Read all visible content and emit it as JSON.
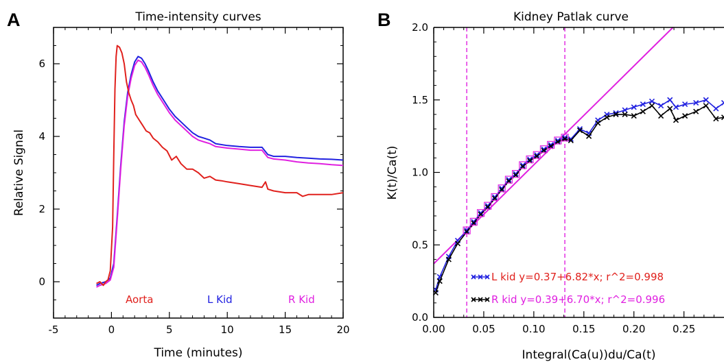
{
  "chart_data": [
    {
      "panel": "A",
      "type": "line",
      "title": "Time-intensity curves",
      "xlabel": "Time (minutes)",
      "ylabel": "Relative Signal",
      "xlim": [
        -5,
        20
      ],
      "ylim": [
        -1.0,
        7.0
      ],
      "xticks": [
        -5,
        0,
        5,
        10,
        15,
        20
      ],
      "yticks": [
        0,
        2,
        4,
        6
      ],
      "grid": false,
      "annotations": [
        {
          "text": "Aorta",
          "color": "#e0201c"
        },
        {
          "text": "L Kid",
          "color": "#2020e0"
        },
        {
          "text": "R Kid",
          "color": "#e020e0"
        }
      ],
      "series": [
        {
          "name": "Aorta",
          "color": "#e0201c",
          "x": [
            -1.3,
            -1.0,
            -0.7,
            -0.5,
            -0.3,
            -0.1,
            0.1,
            0.2,
            0.3,
            0.4,
            0.5,
            0.7,
            0.9,
            1.1,
            1.3,
            1.5,
            1.7,
            1.9,
            2.1,
            2.3,
            2.5,
            2.7,
            3.0,
            3.3,
            3.6,
            4.0,
            4.4,
            4.8,
            5.2,
            5.6,
            6.0,
            6.5,
            7.0,
            7.5,
            8.0,
            8.5,
            9.0,
            9.5,
            10.0,
            11.0,
            12.0,
            13.0,
            13.3,
            13.5,
            14.0,
            15.0,
            16.0,
            16.5,
            17.0,
            18.0,
            19.0,
            20.0
          ],
          "y": [
            -0.05,
            0.0,
            -0.1,
            0.0,
            0.05,
            0.3,
            1.5,
            3.5,
            5.3,
            6.2,
            6.5,
            6.45,
            6.3,
            6.0,
            5.5,
            5.2,
            5.0,
            4.85,
            4.6,
            4.5,
            4.4,
            4.3,
            4.15,
            4.1,
            3.95,
            3.85,
            3.7,
            3.6,
            3.35,
            3.45,
            3.25,
            3.1,
            3.1,
            3.0,
            2.85,
            2.9,
            2.8,
            2.78,
            2.75,
            2.7,
            2.65,
            2.6,
            2.75,
            2.55,
            2.5,
            2.45,
            2.45,
            2.35,
            2.4,
            2.4,
            2.4,
            2.45
          ]
        },
        {
          "name": "L Kid",
          "color": "#2020e0",
          "x": [
            -1.3,
            -1.0,
            -0.5,
            -0.1,
            0.2,
            0.5,
            0.8,
            1.1,
            1.4,
            1.7,
            2.0,
            2.3,
            2.6,
            2.9,
            3.2,
            3.6,
            4.0,
            4.5,
            5.0,
            5.5,
            6.0,
            6.5,
            7.0,
            7.5,
            8.0,
            8.5,
            9.0,
            10.0,
            11.0,
            12.0,
            13.0,
            13.5,
            14.0,
            15.0,
            16.0,
            17.0,
            18.0,
            19.0,
            20.0
          ],
          "y": [
            -0.1,
            -0.05,
            0.0,
            0.1,
            0.5,
            1.8,
            3.2,
            4.4,
            5.2,
            5.7,
            6.05,
            6.2,
            6.15,
            6.0,
            5.8,
            5.5,
            5.25,
            5.0,
            4.75,
            4.55,
            4.4,
            4.25,
            4.1,
            4.0,
            3.95,
            3.9,
            3.8,
            3.75,
            3.72,
            3.7,
            3.7,
            3.5,
            3.45,
            3.45,
            3.42,
            3.4,
            3.38,
            3.37,
            3.35
          ]
        },
        {
          "name": "R Kid",
          "color": "#e020e0",
          "x": [
            -1.3,
            -1.0,
            -0.5,
            -0.1,
            0.2,
            0.5,
            0.8,
            1.1,
            1.4,
            1.7,
            2.0,
            2.3,
            2.6,
            2.9,
            3.2,
            3.6,
            4.0,
            4.5,
            5.0,
            5.5,
            6.0,
            6.5,
            7.0,
            7.5,
            8.0,
            8.5,
            9.0,
            10.0,
            11.0,
            12.0,
            13.0,
            13.5,
            14.0,
            15.0,
            16.0,
            17.0,
            18.0,
            19.0,
            20.0
          ],
          "y": [
            -0.15,
            -0.1,
            -0.05,
            0.05,
            0.4,
            1.7,
            3.1,
            4.3,
            5.1,
            5.6,
            5.95,
            6.1,
            6.05,
            5.9,
            5.7,
            5.4,
            5.15,
            4.9,
            4.65,
            4.45,
            4.3,
            4.15,
            4.0,
            3.9,
            3.85,
            3.8,
            3.72,
            3.68,
            3.65,
            3.62,
            3.62,
            3.42,
            3.38,
            3.35,
            3.3,
            3.27,
            3.25,
            3.22,
            3.2
          ]
        }
      ]
    },
    {
      "panel": "B",
      "type": "line",
      "title": "Kidney Patlak curve",
      "xlabel": "Integral(Ca(u))du/Ca(t)",
      "ylabel": "K(t)/Ca(t)",
      "xlim": [
        0.0,
        0.29
      ],
      "ylim": [
        0.0,
        2.0
      ],
      "xticks": [
        "0.00",
        "0.05",
        "0.10",
        "0.15",
        "0.20",
        "0.25"
      ],
      "yticks": [
        "0.0",
        "0.5",
        "1.0",
        "1.5",
        "2.0"
      ],
      "grid": false,
      "vlines": [
        0.033,
        0.131
      ],
      "vline_color": "#e020e0",
      "fit_line": {
        "intercept": 0.37,
        "slope": 6.82,
        "color": "#e020e0"
      },
      "annotations": [
        {
          "text": "L kid y=0.37+6.82*x; r^2=0.998",
          "color": "#e0201c",
          "marker_color": "#2020e0"
        },
        {
          "text": "R kid y=0.39+6.70*x; r^2=0.996",
          "color": "#e020e0",
          "marker_color": "#000000"
        }
      ],
      "series": [
        {
          "name": "L kid",
          "color": "#2020e0",
          "x": [
            0.002,
            0.006,
            0.015,
            0.024,
            0.033,
            0.04,
            0.047,
            0.054,
            0.061,
            0.068,
            0.075,
            0.082,
            0.089,
            0.096,
            0.103,
            0.11,
            0.117,
            0.124,
            0.131,
            0.137,
            0.146,
            0.155,
            0.164,
            0.173,
            0.182,
            0.191,
            0.2,
            0.209,
            0.218,
            0.227,
            0.236,
            0.242,
            0.251,
            0.262,
            0.272,
            0.282,
            0.29
          ],
          "y": [
            0.19,
            0.28,
            0.42,
            0.53,
            0.6,
            0.66,
            0.72,
            0.77,
            0.83,
            0.89,
            0.95,
            0.99,
            1.05,
            1.09,
            1.12,
            1.16,
            1.19,
            1.22,
            1.24,
            1.23,
            1.3,
            1.27,
            1.36,
            1.4,
            1.41,
            1.43,
            1.45,
            1.47,
            1.49,
            1.46,
            1.5,
            1.45,
            1.47,
            1.48,
            1.5,
            1.44,
            1.48
          ]
        },
        {
          "name": "R kid",
          "color": "#000000",
          "x": [
            0.002,
            0.006,
            0.015,
            0.024,
            0.033,
            0.04,
            0.047,
            0.054,
            0.061,
            0.068,
            0.075,
            0.082,
            0.089,
            0.096,
            0.103,
            0.11,
            0.117,
            0.124,
            0.131,
            0.137,
            0.146,
            0.155,
            0.164,
            0.173,
            0.182,
            0.191,
            0.2,
            0.209,
            0.218,
            0.227,
            0.236,
            0.242,
            0.251,
            0.262,
            0.272,
            0.282,
            0.29
          ],
          "y": [
            0.17,
            0.25,
            0.4,
            0.51,
            0.59,
            0.65,
            0.71,
            0.76,
            0.82,
            0.88,
            0.94,
            0.98,
            1.04,
            1.08,
            1.11,
            1.15,
            1.18,
            1.21,
            1.23,
            1.22,
            1.29,
            1.25,
            1.34,
            1.38,
            1.4,
            1.4,
            1.39,
            1.42,
            1.46,
            1.39,
            1.44,
            1.36,
            1.39,
            1.42,
            1.46,
            1.37,
            1.38
          ]
        }
      ]
    }
  ]
}
